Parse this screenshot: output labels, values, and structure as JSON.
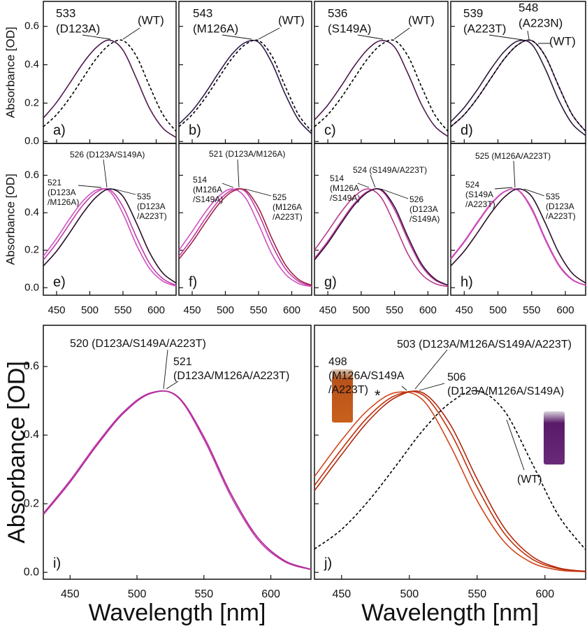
{
  "chart_data": [
    {
      "type": "line",
      "panel": "a)",
      "ylabel": "Absorbance [OD]",
      "xlim": [
        430,
        630
      ],
      "ylim": [
        -0.01,
        0.73
      ],
      "xticks": [
        450,
        500,
        550,
        600
      ],
      "xtick_labels": false,
      "yticks": [
        {
          "value": 0,
          "label": "0.0"
        },
        0.2,
        0.4,
        0.6
      ],
      "ytick_labels": true,
      "x": [
        430,
        450,
        470,
        490,
        510,
        530,
        550,
        570,
        590,
        610,
        630
      ],
      "series": [
        {
          "label": [
            "533",
            "(D123A)"
          ],
          "color": "#4d1a4d",
          "dashed": false,
          "values": [
            0.122,
            0.204,
            0.305,
            0.409,
            0.491,
            0.528,
            0.476,
            0.33,
            0.173,
            0.07,
            0.021
          ]
        },
        {
          "label": [
            "(WT)"
          ],
          "color": "#000000",
          "dashed": true,
          "values": [
            0.077,
            0.14,
            0.228,
            0.332,
            0.433,
            0.505,
            0.526,
            0.446,
            0.289,
            0.141,
            0.053
          ]
        }
      ]
    },
    {
      "type": "line",
      "panel": "b)",
      "xlim": [
        430,
        630
      ],
      "ylim": [
        -0.01,
        0.73
      ],
      "xticks": [
        450,
        500,
        550,
        600
      ],
      "xtick_labels": false,
      "yticks": [
        0,
        0.2,
        0.4,
        0.6
      ],
      "ytick_labels": false,
      "x": [
        430,
        450,
        470,
        490,
        510,
        530,
        550,
        570,
        590,
        610,
        630
      ],
      "series": [
        {
          "label": [
            "543",
            "(M126A)"
          ],
          "color": "#2f1a4a",
          "dashed": false,
          "values": [
            0.091,
            0.16,
            0.253,
            0.359,
            0.455,
            0.516,
            0.517,
            0.41,
            0.248,
            0.114,
            0.04
          ]
        },
        {
          "label": [
            "(WT)"
          ],
          "color": "#000000",
          "dashed": true,
          "values": [
            0.077,
            0.14,
            0.228,
            0.332,
            0.433,
            0.505,
            0.526,
            0.446,
            0.289,
            0.141,
            0.053
          ]
        }
      ]
    },
    {
      "type": "line",
      "panel": "c)",
      "xlim": [
        430,
        630
      ],
      "ylim": [
        -0.01,
        0.73
      ],
      "xticks": [
        450,
        500,
        550,
        600
      ],
      "xtick_labels": false,
      "yticks": [
        0,
        0.2,
        0.4,
        0.6
      ],
      "ytick_labels": false,
      "x": [
        430,
        450,
        470,
        490,
        510,
        530,
        550,
        570,
        590,
        610,
        630
      ],
      "series": [
        {
          "label": [
            "536",
            "(S149A)"
          ],
          "color": "#4d1a4d",
          "dashed": false,
          "values": [
            0.112,
            0.19,
            0.289,
            0.395,
            0.481,
            0.526,
            0.492,
            0.355,
            0.195,
            0.081,
            0.026
          ]
        },
        {
          "label": [
            "(WT)"
          ],
          "color": "#000000",
          "dashed": true,
          "values": [
            0.077,
            0.14,
            0.228,
            0.332,
            0.433,
            0.505,
            0.526,
            0.446,
            0.289,
            0.141,
            0.053
          ]
        }
      ]
    },
    {
      "type": "line",
      "panel": "d)",
      "xlim": [
        430,
        630
      ],
      "ylim": [
        -0.01,
        0.73
      ],
      "xticks": [
        450,
        500,
        550,
        600
      ],
      "xtick_labels": false,
      "yticks": [
        0,
        0.2,
        0.4,
        0.6
      ],
      "ytick_labels": false,
      "x": [
        430,
        450,
        470,
        490,
        510,
        530,
        550,
        570,
        590,
        610,
        630
      ],
      "series": [
        {
          "label": [
            "539",
            "(A223T)"
          ],
          "color": "#2a1a3a",
          "dashed": false,
          "values": [
            0.102,
            0.177,
            0.273,
            0.38,
            0.471,
            0.524,
            0.507,
            0.38,
            0.216,
            0.093,
            0.031
          ]
        },
        {
          "label": [
            "548",
            "(A223N)"
          ],
          "color": "#5e2a6a",
          "dashed": false,
          "values": [
            0.077,
            0.14,
            0.228,
            0.332,
            0.433,
            0.505,
            0.526,
            0.446,
            0.289,
            0.141,
            0.053
          ]
        },
        {
          "label": [
            "(WT)"
          ],
          "color": "#000000",
          "dashed": true,
          "values": [
            0.077,
            0.14,
            0.228,
            0.332,
            0.433,
            0.505,
            0.526,
            0.446,
            0.289,
            0.141,
            0.053
          ]
        }
      ]
    },
    {
      "type": "line",
      "panel": "e)",
      "ylabel": "Absorbance [OD]",
      "xlim": [
        430,
        630
      ],
      "ylim": [
        -0.04,
        0.77
      ],
      "xticks": [
        450,
        500,
        550,
        600
      ],
      "xtick_labels": true,
      "yticks": [
        {
          "value": 0,
          "label": "0.0"
        },
        0.2,
        0.4,
        0.6
      ],
      "ytick_labels": true,
      "x": [
        430,
        450,
        470,
        490,
        510,
        530,
        550,
        570,
        590,
        610,
        630
      ],
      "series": [
        {
          "label": [
            "526 (D123A/S149A)"
          ],
          "color": "#c03caa",
          "dashed": false,
          "values": [
            0.148,
            0.238,
            0.343,
            0.442,
            0.51,
            0.523,
            0.432,
            0.272,
            0.13,
            0.048,
            0.013
          ]
        },
        {
          "label": [
            "521",
            "(D123A",
            "/M126A)"
          ],
          "color": "#d050c0",
          "dashed": false,
          "values": [
            0.168,
            0.263,
            0.37,
            0.464,
            0.521,
            0.514,
            0.395,
            0.231,
            0.103,
            0.035,
            0.009
          ]
        },
        {
          "label": [
            "535",
            "(D123A",
            "/A223T)"
          ],
          "color": "#2a0f2a",
          "dashed": false,
          "values": [
            0.116,
            0.195,
            0.295,
            0.4,
            0.485,
            0.527,
            0.487,
            0.347,
            0.188,
            0.078,
            0.025
          ]
        }
      ]
    },
    {
      "type": "line",
      "panel": "f)",
      "xlim": [
        430,
        630
      ],
      "ylim": [
        -0.04,
        0.77
      ],
      "xticks": [
        450,
        500,
        550,
        600
      ],
      "xtick_labels": true,
      "yticks": [
        0,
        0.2,
        0.4,
        0.6
      ],
      "ytick_labels": false,
      "x": [
        430,
        450,
        470,
        490,
        510,
        530,
        550,
        570,
        590,
        610,
        630
      ],
      "series": [
        {
          "label": [
            "521 (D123A/M126A)"
          ],
          "color": "#c03caa",
          "dashed": false,
          "values": [
            0.168,
            0.263,
            0.37,
            0.464,
            0.521,
            0.514,
            0.395,
            0.231,
            0.103,
            0.035,
            0.009
          ]
        },
        {
          "label": [
            "514",
            "(M126A",
            "/S149A)"
          ],
          "color": "#d050c0",
          "dashed": false,
          "values": [
            0.2,
            0.3,
            0.404,
            0.488,
            0.527,
            0.481,
            0.338,
            0.18,
            0.074,
            0.023,
            0.006
          ]
        },
        {
          "label": [
            "525",
            "(M126A",
            "/A223T)"
          ],
          "color": "#a02040",
          "dashed": false,
          "values": [
            0.152,
            0.243,
            0.348,
            0.446,
            0.512,
            0.521,
            0.425,
            0.264,
            0.125,
            0.045,
            0.013
          ]
        }
      ]
    },
    {
      "type": "line",
      "panel": "g)",
      "xlim": [
        430,
        630
      ],
      "ylim": [
        -0.04,
        0.77
      ],
      "xticks": [
        450,
        500,
        550,
        600
      ],
      "xtick_labels": true,
      "yticks": [
        0,
        0.2,
        0.4,
        0.6
      ],
      "ytick_labels": false,
      "x": [
        430,
        450,
        470,
        490,
        510,
        530,
        550,
        570,
        590,
        610,
        630
      ],
      "series": [
        {
          "label": [
            "514",
            "(M126A",
            "/S149A)"
          ],
          "color": "#b83a8a",
          "dashed": false,
          "values": [
            0.2,
            0.3,
            0.404,
            0.488,
            0.527,
            0.481,
            0.338,
            0.18,
            0.074,
            0.023,
            0.006
          ]
        },
        {
          "label": [
            "524 (S149A/A223T)"
          ],
          "color": "#c03caa",
          "dashed": false,
          "values": [
            0.156,
            0.248,
            0.353,
            0.45,
            0.514,
            0.519,
            0.417,
            0.256,
            0.119,
            0.042,
            0.012
          ]
        },
        {
          "label": [
            "526",
            "(D123A",
            "/S149A)"
          ],
          "color": "#3a1030",
          "dashed": false,
          "values": [
            0.148,
            0.238,
            0.343,
            0.442,
            0.51,
            0.523,
            0.432,
            0.272,
            0.13,
            0.048,
            0.013
          ]
        }
      ]
    },
    {
      "type": "line",
      "panel": "h)",
      "xlim": [
        430,
        630
      ],
      "ylim": [
        -0.04,
        0.77
      ],
      "xticks": [
        450,
        500,
        550,
        600
      ],
      "xtick_labels": true,
      "yticks": [
        0,
        0.2,
        0.4,
        0.6
      ],
      "ytick_labels": false,
      "x": [
        430,
        450,
        470,
        490,
        510,
        530,
        550,
        570,
        590,
        610,
        630
      ],
      "series": [
        {
          "label": [
            "525 (M126A/A223T)"
          ],
          "color": "#c03caa",
          "dashed": false,
          "values": [
            0.152,
            0.243,
            0.348,
            0.446,
            0.512,
            0.521,
            0.425,
            0.264,
            0.125,
            0.045,
            0.013
          ]
        },
        {
          "label": [
            "524",
            "(S149A",
            "/A223T)"
          ],
          "color": "#d050c0",
          "dashed": false,
          "values": [
            0.156,
            0.248,
            0.353,
            0.45,
            0.514,
            0.519,
            0.417,
            0.256,
            0.119,
            0.042,
            0.012
          ]
        },
        {
          "label": [
            "535",
            "(D123A",
            "/A223T)"
          ],
          "color": "#2a0f2a",
          "dashed": false,
          "values": [
            0.116,
            0.195,
            0.295,
            0.4,
            0.485,
            0.527,
            0.487,
            0.347,
            0.188,
            0.078,
            0.025
          ]
        }
      ]
    },
    {
      "type": "line",
      "panel": "i)",
      "ylabel": "Absorbance [OD]",
      "xlabel": "Wavelength [nm]",
      "xlim": [
        430,
        630
      ],
      "ylim": [
        -0.02,
        0.72
      ],
      "xticks": [
        450,
        500,
        550,
        600
      ],
      "xtick_labels": true,
      "yticks": [
        {
          "value": 0,
          "label": "0.0"
        },
        0.2,
        0.4,
        0.6
      ],
      "ytick_labels": true,
      "x": [
        430,
        450,
        470,
        490,
        510,
        530,
        550,
        570,
        590,
        610,
        630
      ],
      "series": [
        {
          "label": [
            "520 (D123A/S149A/A223T)"
          ],
          "color": "#c03caa",
          "dashed": false,
          "values": [
            0.172,
            0.268,
            0.375,
            0.468,
            0.523,
            0.512,
            0.388,
            0.223,
            0.097,
            0.032,
            0.008
          ]
        },
        {
          "label": [
            "521",
            "(D123A/M126A/A223T)"
          ],
          "color": "#b02a9a",
          "dashed": false,
          "values": [
            0.168,
            0.263,
            0.37,
            0.464,
            0.521,
            0.514,
            0.395,
            0.231,
            0.103,
            0.035,
            0.009
          ]
        }
      ]
    },
    {
      "type": "line",
      "panel": "j)",
      "xlabel": "Wavelength [nm]",
      "note": "*",
      "xlim": [
        430,
        630
      ],
      "ylim": [
        -0.02,
        0.72
      ],
      "xticks": [
        450,
        500,
        550,
        600
      ],
      "xtick_labels": true,
      "yticks": [
        0,
        0.2,
        0.4,
        0.6
      ],
      "ytick_labels": false,
      "x": [
        430,
        450,
        470,
        490,
        510,
        530,
        550,
        570,
        590,
        610,
        630
      ],
      "series": [
        {
          "label": [
            "503 (D123A/M126A/S149A/A223T)"
          ],
          "color": "#c0300a",
          "dashed": false,
          "values": [
            0.253,
            0.359,
            0.455,
            0.516,
            0.517,
            0.41,
            0.248,
            0.114,
            0.04,
            0.011,
            0.003
          ]
        },
        {
          "label": [
            "498",
            "(M126A/S149A",
            "/A223T)"
          ],
          "color": "#d0451a",
          "dashed": false,
          "values": [
            0.279,
            0.385,
            0.475,
            0.524,
            0.502,
            0.371,
            0.209,
            0.089,
            0.029,
            0.007,
            0.002
          ]
        },
        {
          "label": [
            "506",
            "(D123A/M126A/S149A)"
          ],
          "color": "#b02a10",
          "dashed": false,
          "values": [
            0.238,
            0.343,
            0.442,
            0.51,
            0.523,
            0.432,
            0.272,
            0.13,
            0.048,
            0.013,
            0.003
          ]
        },
        {
          "label": [
            "(WT)"
          ],
          "color": "#000000",
          "dashed": true,
          "values": [
            0.068,
            0.125,
            0.209,
            0.31,
            0.414,
            0.494,
            0.529,
            0.471,
            0.322,
            0.166,
            0.066
          ]
        }
      ]
    }
  ]
}
